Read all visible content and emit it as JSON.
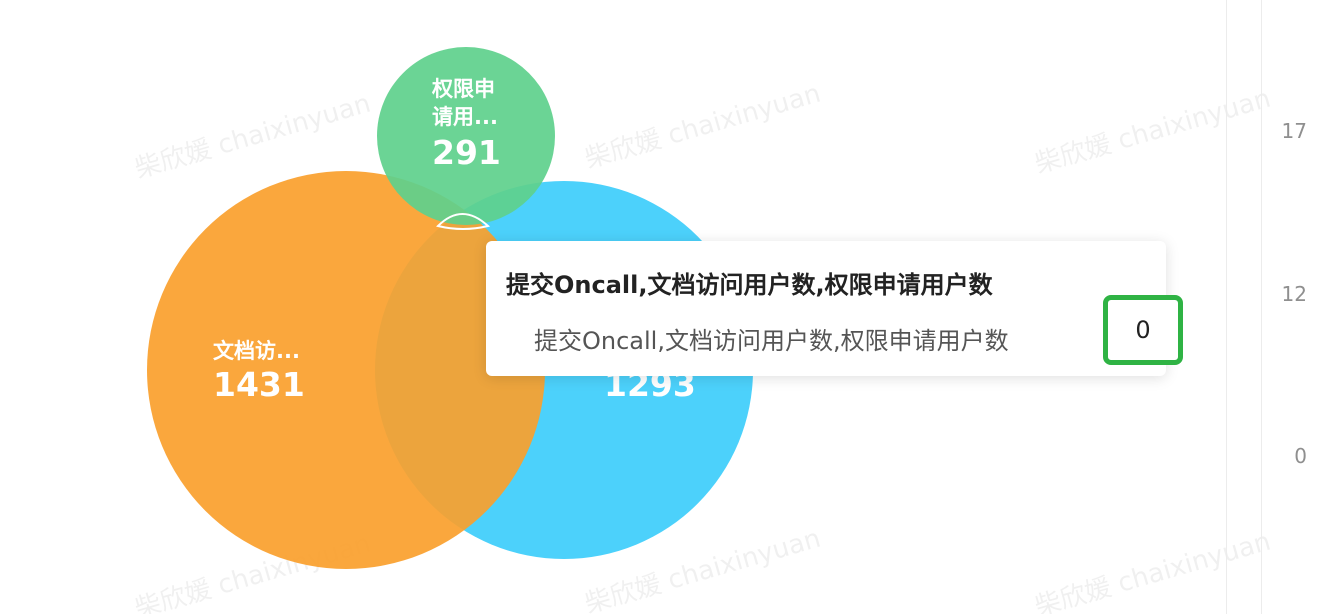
{
  "chart_data": {
    "type": "venn",
    "sets": [
      {
        "name": "文档访...",
        "value": 1431,
        "color": "#fa9f2c"
      },
      {
        "name": "",
        "value": 1293,
        "color": "#4cd1fb"
      },
      {
        "name": "权限申请用...",
        "value": 291,
        "color": "#5ed08c"
      }
    ],
    "intersection_value": 0
  },
  "labels": {
    "green_line1": "权限申",
    "green_line2": "请用...",
    "green_value": "291",
    "orange_name": "文档访...",
    "orange_value": "1431",
    "blue_value": "1293"
  },
  "tooltip": {
    "title": "提交Oncall,文档访问用户数,权限申请用户数",
    "row_label": "提交Oncall,文档访问用户数,权限申请用户数",
    "value": "0",
    "highlight_color": "#2fb344"
  },
  "side_axis": {
    "ticks": [
      "17",
      "12",
      "0"
    ]
  },
  "watermark": {
    "text": "柴欣媛 chaixinyuan"
  }
}
